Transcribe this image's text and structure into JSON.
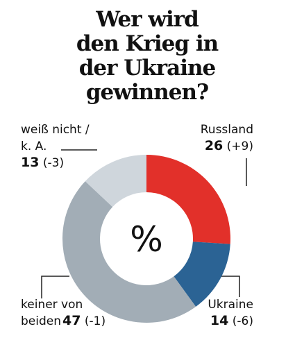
{
  "chart_data": {
    "type": "donut",
    "title": [
      "Wer wird",
      "den Krieg in",
      "der Ukraine",
      "gewinnen?"
    ],
    "center_label": "%",
    "categories": [
      "Russland",
      "Ukraine",
      "keiner von beiden",
      "weiß nicht / k. A."
    ],
    "values": [
      26,
      14,
      47,
      13
    ],
    "change_labels": [
      "(+9)",
      "(-6)",
      "(-1)",
      "(-3)"
    ],
    "colors": [
      "#e2302a",
      "#2b6394",
      "#a2adb6",
      "#cfd6dc"
    ]
  }
}
